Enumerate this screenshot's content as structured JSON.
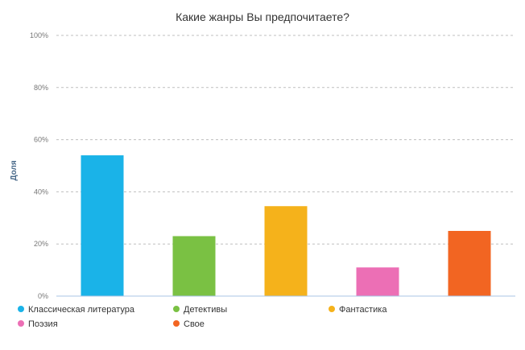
{
  "chart_data": {
    "type": "bar",
    "title": "Какие жанры Вы предпочитаете?",
    "ylabel": "Доля",
    "xlabel": "",
    "ylim": [
      0,
      100
    ],
    "yticks": [
      "0%",
      "20%",
      "40%",
      "60%",
      "80%",
      "100%"
    ],
    "grid": true,
    "legend_placement": "bottom",
    "categories": [
      "Классическая литература",
      "Детективы",
      "Фантастика",
      "Поэзия",
      "Свое"
    ],
    "values": [
      54,
      23,
      34.5,
      11,
      25
    ],
    "colors": [
      "#1ab3e8",
      "#7ac143",
      "#f5b21b",
      "#ec6fb5",
      "#f26522"
    ]
  }
}
